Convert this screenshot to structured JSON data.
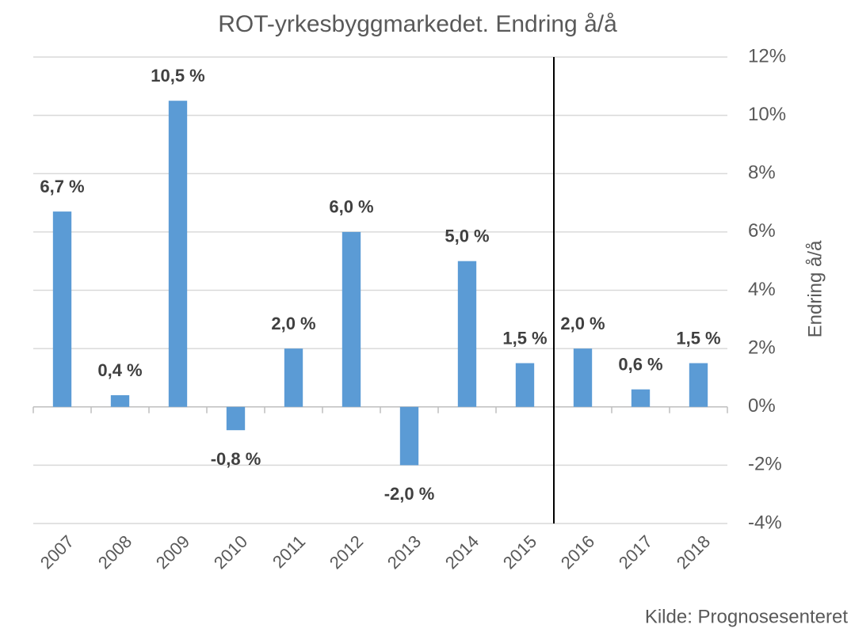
{
  "chart_data": {
    "type": "bar",
    "title": "ROT-yrkesbyggmarkedet. Endring å/å",
    "y_axis_label": "Endring å/å",
    "source": "Kilde: Prognosesenteret",
    "categories": [
      "2007",
      "2008",
      "2009",
      "2010",
      "2011",
      "2012",
      "2013",
      "2014",
      "2015",
      "2016",
      "2017",
      "2018"
    ],
    "values": [
      6.7,
      0.4,
      10.5,
      -0.8,
      2.0,
      6.0,
      -2.0,
      5.0,
      1.5,
      2.0,
      0.6,
      1.5
    ],
    "value_labels": [
      "6,7 %",
      "0,4 %",
      "10,5 %",
      "-0,8 %",
      "2,0 %",
      "6,0 %",
      "-2,0 %",
      "5,0 %",
      "1,5 %",
      "2,0 %",
      "0,6 %",
      "1,5 %"
    ],
    "color": "#5b9bd5",
    "ylim": [
      -4,
      12
    ],
    "yticks": [
      {
        "value": -4,
        "label": "-4%"
      },
      {
        "value": -2,
        "label": "-2%"
      },
      {
        "value": 0,
        "label": "0%"
      },
      {
        "value": 2,
        "label": "2%"
      },
      {
        "value": 4,
        "label": "4%"
      },
      {
        "value": 6,
        "label": "6%"
      },
      {
        "value": 8,
        "label": "8%"
      },
      {
        "value": 10,
        "label": "10%"
      },
      {
        "value": 12,
        "label": "12%"
      }
    ],
    "y_axis_side": "right",
    "grid": true
  }
}
